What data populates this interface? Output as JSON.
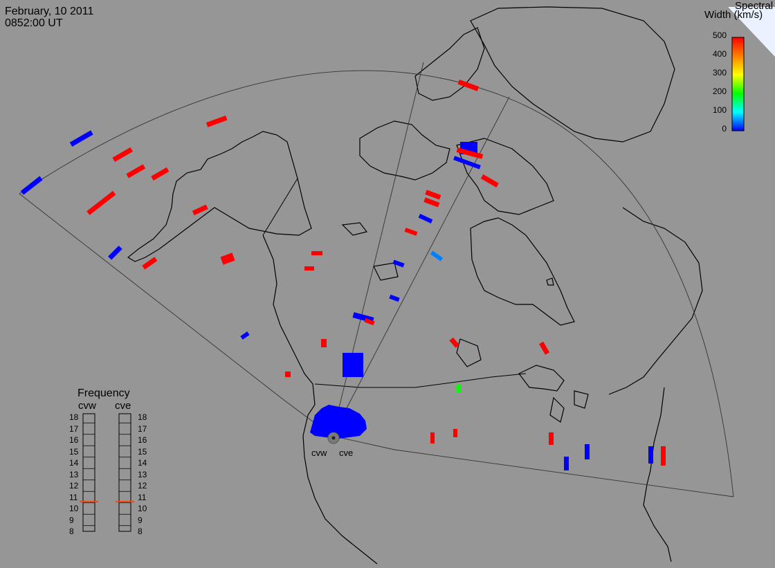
{
  "header": {
    "date": "February, 10 2011",
    "time": "0852:00 UT"
  },
  "legend": {
    "title_line1": "Spectral",
    "title_line2": "Width (km/s)",
    "ticks": [
      "500",
      "400",
      "300",
      "200",
      "100",
      "0"
    ],
    "colors": [
      "#ff0000",
      "#ff8000",
      "#ffff00",
      "#00ff00",
      "#00ffff",
      "#0000ff"
    ]
  },
  "frequency": {
    "title": "Frequency",
    "radars": [
      {
        "name": "cvw",
        "value_mhz": 10.6
      },
      {
        "name": "cve",
        "value_mhz": 10.6
      }
    ],
    "ticks": [
      "18",
      "17",
      "16",
      "15",
      "14",
      "13",
      "12",
      "11",
      "10",
      "9",
      "8"
    ],
    "marker_color": "#ff4000"
  },
  "radars": {
    "west": "cvw",
    "east": "cve"
  },
  "colors": {
    "background": "#969696",
    "low": "#0000ff",
    "high": "#ff0000",
    "mid": "#00ff00",
    "cyan": "#0080ff"
  }
}
